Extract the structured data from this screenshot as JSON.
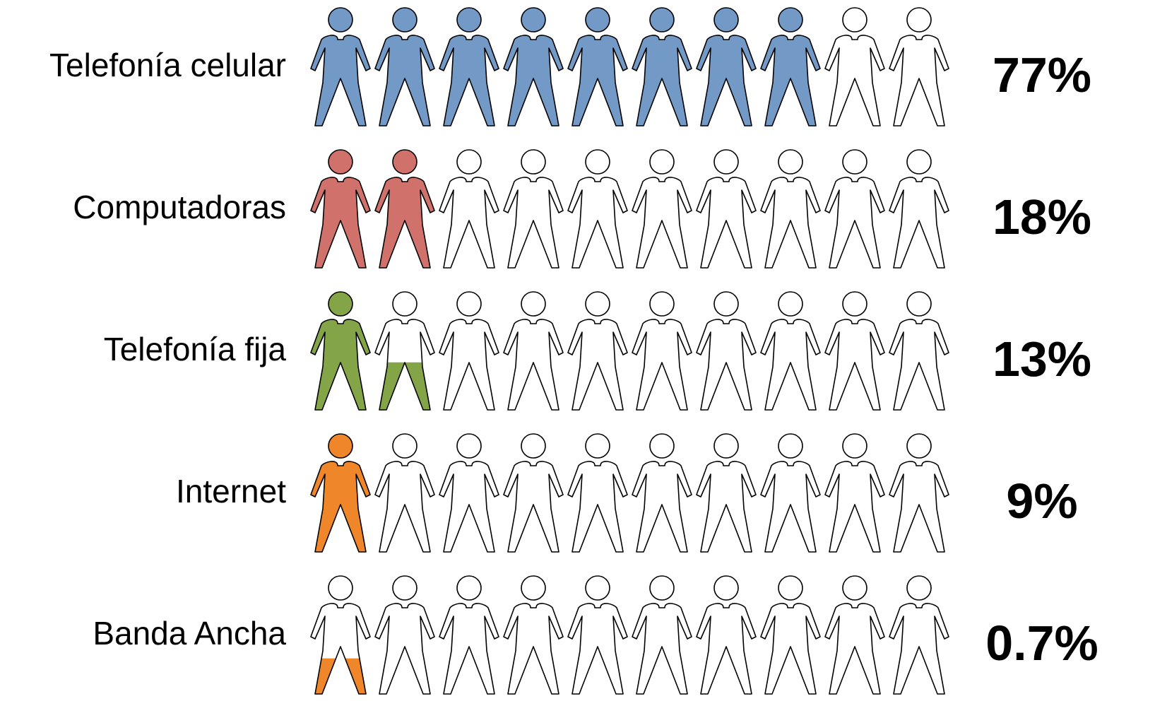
{
  "chart_data": {
    "type": "pictograph",
    "icons_per_row": 10,
    "rows": [
      {
        "label": "Telefonía celular",
        "value": 77,
        "value_label": "77%",
        "filled_icons": 8,
        "color": "#7399C6"
      },
      {
        "label": "Computadoras",
        "value": 18,
        "value_label": "18%",
        "filled_icons": 2,
        "color": "#D0726B"
      },
      {
        "label": "Telefonía fija",
        "value": 13,
        "value_label": "13%",
        "filled_icons": 1.4,
        "color": "#84A547"
      },
      {
        "label": "Internet",
        "value": 9,
        "value_label": "9%",
        "filled_icons": 1,
        "color": "#F0862A"
      },
      {
        "label": "Banda Ancha",
        "value": 0.7,
        "value_label": "0.7%",
        "filled_icons": 0.3,
        "color": "#F0862A"
      }
    ],
    "empty_color": "#FFFFFF",
    "outline_color": "#000000"
  }
}
